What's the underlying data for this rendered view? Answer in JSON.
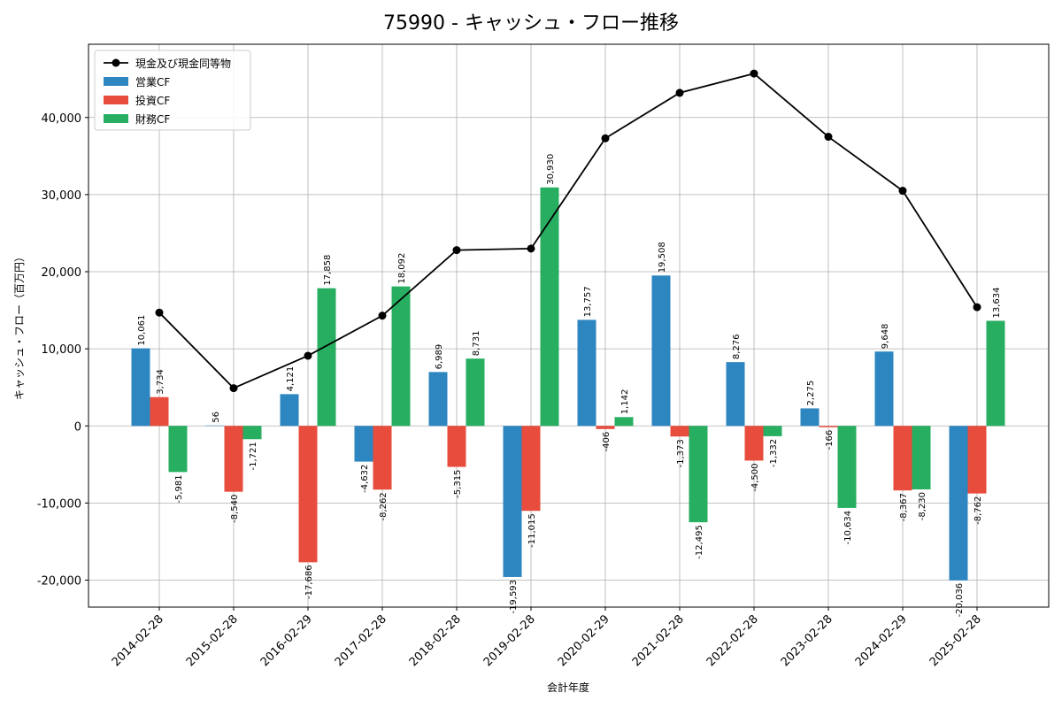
{
  "chart_data": {
    "type": "bar",
    "title": "75990 - キャッシュ・フロー推移",
    "xlabel": "会計年度",
    "ylabel": "キャッシュ・フロー（百万円）",
    "ylim": [
      -23500,
      49500
    ],
    "yticks": [
      -20000,
      -10000,
      0,
      10000,
      20000,
      30000,
      40000
    ],
    "ytick_labels": [
      "-20,000",
      "-10,000",
      "0",
      "10,000",
      "20,000",
      "30,000",
      "40,000"
    ],
    "grid": true,
    "legend_position": "upper-left",
    "categories": [
      "2014-02-28",
      "2015-02-28",
      "2016-02-29",
      "2017-02-28",
      "2018-02-28",
      "2019-02-28",
      "2020-02-29",
      "2021-02-28",
      "2022-02-28",
      "2023-02-28",
      "2024-02-29",
      "2025-02-28"
    ],
    "series": [
      {
        "name": "営業CF",
        "kind": "bar",
        "color": "#2e86c1",
        "values": [
          10061,
          56,
          4121,
          -4632,
          6989,
          -19593,
          13757,
          19508,
          8276,
          2275,
          9648,
          -20036
        ],
        "labels": [
          "10,061",
          "56",
          "4,121",
          "-4,632",
          "6,989",
          "-19,593",
          "13,757",
          "19,508",
          "8,276",
          "2,275",
          "9,648",
          "-20,036"
        ]
      },
      {
        "name": "投資CF",
        "kind": "bar",
        "color": "#e74c3c",
        "values": [
          3734,
          -8540,
          -17686,
          -8262,
          -5315,
          -11015,
          -406,
          -1373,
          -4500,
          -166,
          -8367,
          -8762
        ],
        "labels": [
          "3,734",
          "-8,540",
          "-17,686",
          "-8,262",
          "-5,315",
          "-11,015",
          "-406",
          "-1,373",
          "-4,500",
          "-166",
          "-8,367",
          "-8,762"
        ]
      },
      {
        "name": "財務CF",
        "kind": "bar",
        "color": "#27ae60",
        "values": [
          -5981,
          -1721,
          17858,
          18092,
          8731,
          30930,
          1142,
          -12495,
          -1332,
          -10634,
          -8230,
          13634
        ],
        "labels": [
          "-5,981",
          "-1,721",
          "17,858",
          "18,092",
          "8,731",
          "30,930",
          "1,142",
          "-12,495",
          "-1,332",
          "-10,634",
          "-8,230",
          "13,634"
        ]
      },
      {
        "name": "現金及び現金同等物",
        "kind": "line",
        "color": "#000000",
        "values": [
          14700,
          4900,
          9100,
          14300,
          22800,
          23000,
          37300,
          43200,
          45700,
          37500,
          30500,
          15400
        ]
      }
    ]
  }
}
